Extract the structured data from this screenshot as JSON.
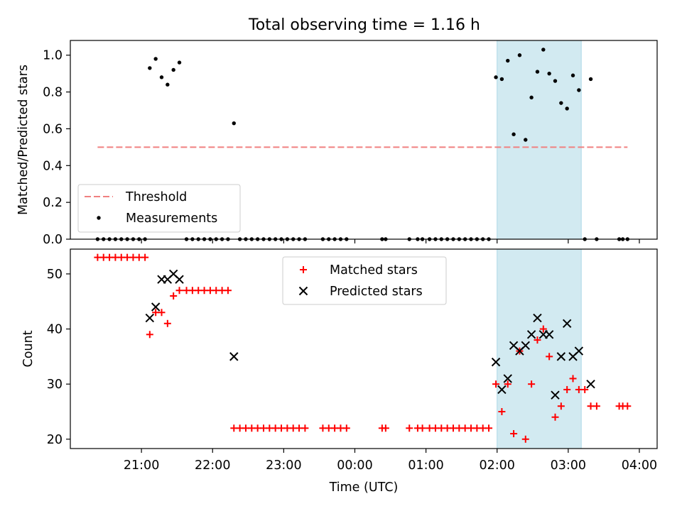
{
  "title": "Total observing time = 1.16 h",
  "shade_label": "",
  "colors": {
    "shade": "#add8e6",
    "threshold": "#f08080",
    "measurement": "#000000",
    "matched": "#ff0000",
    "predicted": "#000000"
  },
  "chart_data": [
    {
      "type": "scatter",
      "panel": "top",
      "ylabel": "Matched/Predicted stars",
      "xlabel": "",
      "ylim": [
        0.0,
        1.08
      ],
      "xlim_hours": [
        20.0,
        28.25
      ],
      "x_ticks": [
        "21:00",
        "22:00",
        "23:00",
        "00:00",
        "01:00",
        "02:00",
        "03:00",
        "04:00"
      ],
      "y_ticks": [
        "0.0",
        "0.2",
        "0.4",
        "0.6",
        "0.8",
        "1.0"
      ],
      "shaded_interval": [
        "02:00",
        "03:11"
      ],
      "legend": {
        "position": "lower-left",
        "entries": [
          "Threshold",
          "Measurements"
        ]
      },
      "series": [
        {
          "name": "Threshold",
          "style": "dashed-line",
          "x": [
            "20:23",
            "23:50",
            "03:50"
          ],
          "y": [
            0.5,
            0.5,
            0.5
          ]
        },
        {
          "name": "Measurements",
          "style": "dot",
          "x": [
            "21:07",
            "21:12",
            "21:17",
            "21:22",
            "21:27",
            "21:32",
            "22:18",
            "01:59",
            "02:04",
            "02:09",
            "02:14",
            "02:19",
            "02:24",
            "02:29",
            "02:34",
            "02:39",
            "02:44",
            "02:49",
            "02:54",
            "02:59",
            "03:04",
            "03:09",
            "03:19",
            "20:23",
            "20:28",
            "20:33",
            "20:38",
            "20:43",
            "20:48",
            "20:53",
            "20:58",
            "21:03",
            "21:38",
            "21:43",
            "21:48",
            "21:53",
            "21:58",
            "22:03",
            "22:08",
            "22:13",
            "22:23",
            "22:28",
            "22:33",
            "22:38",
            "22:43",
            "22:48",
            "22:53",
            "22:58",
            "23:03",
            "23:08",
            "23:13",
            "23:18",
            "23:33",
            "23:38",
            "23:43",
            "23:48",
            "23:53",
            "00:23",
            "00:26",
            "00:46",
            "00:53",
            "00:57",
            "01:03",
            "01:08",
            "01:13",
            "01:18",
            "01:23",
            "01:28",
            "01:33",
            "01:38",
            "01:43",
            "01:48",
            "01:53",
            "03:14",
            "03:24",
            "03:43",
            "03:46",
            "03:50"
          ],
          "y": [
            0.93,
            0.98,
            0.88,
            0.84,
            0.92,
            0.96,
            0.63,
            0.88,
            0.87,
            0.97,
            0.57,
            1.0,
            0.54,
            0.77,
            0.91,
            1.03,
            0.9,
            0.86,
            0.74,
            0.71,
            0.89,
            0.81,
            0.87,
            0,
            0,
            0,
            0,
            0,
            0,
            0,
            0,
            0,
            0,
            0,
            0,
            0,
            0,
            0,
            0,
            0,
            0,
            0,
            0,
            0,
            0,
            0,
            0,
            0,
            0,
            0,
            0,
            0,
            0,
            0,
            0,
            0,
            0,
            0,
            0,
            0,
            0,
            0,
            0,
            0,
            0,
            0,
            0,
            0,
            0,
            0,
            0,
            0,
            0,
            0,
            0,
            0,
            0,
            0
          ]
        }
      ]
    },
    {
      "type": "scatter",
      "panel": "bottom",
      "ylabel": "Count",
      "xlabel": "Time (UTC)",
      "ylim": [
        18.3,
        54.5
      ],
      "xlim_hours": [
        20.0,
        28.25
      ],
      "x_ticks": [
        "21:00",
        "22:00",
        "23:00",
        "00:00",
        "01:00",
        "02:00",
        "03:00",
        "04:00"
      ],
      "y_ticks": [
        "20",
        "30",
        "40",
        "50"
      ],
      "shaded_interval": [
        "02:00",
        "03:11"
      ],
      "legend": {
        "position": "upper-center",
        "entries": [
          "Matched stars",
          "Predicted stars"
        ]
      },
      "series": [
        {
          "name": "Matched stars",
          "style": "plus",
          "x": [
            "20:23",
            "20:28",
            "20:33",
            "20:38",
            "20:43",
            "20:48",
            "20:53",
            "20:58",
            "21:03",
            "21:07",
            "21:12",
            "21:17",
            "21:22",
            "21:27",
            "21:32",
            "21:38",
            "21:43",
            "21:48",
            "21:53",
            "21:58",
            "22:03",
            "22:08",
            "22:13",
            "22:18",
            "22:23",
            "22:28",
            "22:33",
            "22:38",
            "22:43",
            "22:48",
            "22:53",
            "22:58",
            "23:03",
            "23:08",
            "23:13",
            "23:18",
            "23:33",
            "23:38",
            "23:43",
            "23:48",
            "23:53",
            "00:23",
            "00:26",
            "00:46",
            "00:53",
            "00:57",
            "01:03",
            "01:08",
            "01:13",
            "01:18",
            "01:23",
            "01:28",
            "01:33",
            "01:38",
            "01:43",
            "01:48",
            "01:53",
            "01:59",
            "02:04",
            "02:09",
            "02:14",
            "02:19",
            "02:24",
            "02:29",
            "02:34",
            "02:39",
            "02:44",
            "02:49",
            "02:54",
            "02:59",
            "03:04",
            "03:09",
            "03:14",
            "03:19",
            "03:24",
            "03:43",
            "03:46",
            "03:50"
          ],
          "y": [
            53,
            53,
            53,
            53,
            53,
            53,
            53,
            53,
            53,
            39,
            43,
            43,
            41,
            46,
            47,
            47,
            47,
            47,
            47,
            47,
            47,
            47,
            47,
            22,
            22,
            22,
            22,
            22,
            22,
            22,
            22,
            22,
            22,
            22,
            22,
            22,
            22,
            22,
            22,
            22,
            22,
            22,
            22,
            22,
            22,
            22,
            22,
            22,
            22,
            22,
            22,
            22,
            22,
            22,
            22,
            22,
            22,
            30,
            25,
            30,
            21,
            36,
            20,
            30,
            38,
            40,
            35,
            24,
            26,
            29,
            31,
            29,
            29,
            26,
            26,
            26,
            26,
            26
          ]
        },
        {
          "name": "Predicted stars",
          "style": "x",
          "x": [
            "21:07",
            "21:12",
            "21:17",
            "21:22",
            "21:27",
            "21:32",
            "22:18",
            "01:59",
            "02:04",
            "02:09",
            "02:14",
            "02:19",
            "02:24",
            "02:29",
            "02:34",
            "02:39",
            "02:44",
            "02:49",
            "02:54",
            "02:59",
            "03:04",
            "03:09",
            "03:19"
          ],
          "y": [
            42,
            44,
            49,
            49,
            50,
            49,
            35,
            34,
            29,
            31,
            37,
            36,
            37,
            39,
            42,
            39,
            39,
            28,
            35,
            41,
            35,
            36,
            30
          ]
        }
      ]
    }
  ]
}
